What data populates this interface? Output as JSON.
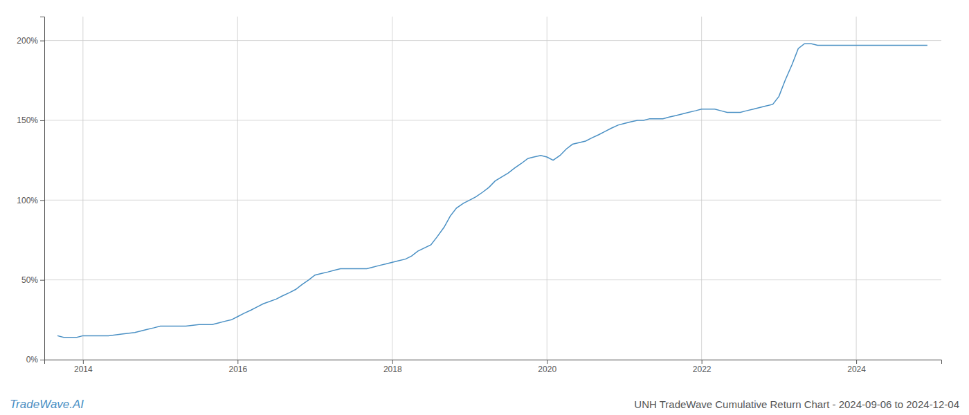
{
  "chart_data": {
    "type": "line",
    "title": "UNH TradeWave Cumulative Return Chart - 2024-09-06 to 2024-12-04",
    "annotations": [
      "TradeWave.AI"
    ],
    "color": "#4a90c4",
    "grid": true,
    "x": [
      2013.67,
      2013.75,
      2013.92,
      2014.0,
      2014.08,
      2014.17,
      2014.25,
      2014.33,
      2014.5,
      2014.67,
      2014.75,
      2014.83,
      2014.92,
      2015.0,
      2015.08,
      2015.17,
      2015.25,
      2015.33,
      2015.5,
      2015.58,
      2015.67,
      2015.75,
      2015.83,
      2015.92,
      2016.0,
      2016.08,
      2016.17,
      2016.25,
      2016.33,
      2016.5,
      2016.58,
      2016.67,
      2016.75,
      2016.83,
      2016.92,
      2017.0,
      2017.08,
      2017.17,
      2017.25,
      2017.33,
      2017.5,
      2017.58,
      2017.67,
      2017.75,
      2017.83,
      2017.92,
      2018.0,
      2018.08,
      2018.17,
      2018.25,
      2018.33,
      2018.5,
      2018.58,
      2018.67,
      2018.75,
      2018.83,
      2018.92,
      2019.0,
      2019.08,
      2019.17,
      2019.25,
      2019.33,
      2019.5,
      2019.58,
      2019.67,
      2019.75,
      2019.83,
      2019.92,
      2020.0,
      2020.08,
      2020.17,
      2020.25,
      2020.33,
      2020.5,
      2020.58,
      2020.67,
      2020.75,
      2020.83,
      2020.92,
      2021.0,
      2021.08,
      2021.17,
      2021.25,
      2021.33,
      2021.5,
      2021.58,
      2021.67,
      2021.75,
      2021.83,
      2021.92,
      2022.0,
      2022.08,
      2022.17,
      2022.25,
      2022.33,
      2022.5,
      2022.58,
      2022.67,
      2022.75,
      2022.83,
      2022.92,
      2023.0,
      2023.08,
      2023.17,
      2023.25,
      2023.33,
      2023.42,
      2023.5,
      2023.58,
      2023.67,
      2023.75,
      2023.83,
      2023.92,
      2024.0,
      2024.08,
      2024.17,
      2024.25,
      2024.33,
      2024.5,
      2024.58,
      2024.67,
      2024.75,
      2024.83,
      2024.92
    ],
    "values": [
      15,
      14,
      14,
      15,
      15,
      15,
      15,
      15,
      16,
      17,
      18,
      19,
      20,
      21,
      21,
      21,
      21,
      21,
      22,
      22,
      22,
      23,
      24,
      25,
      27,
      29,
      31,
      33,
      35,
      38,
      40,
      42,
      44,
      47,
      50,
      53,
      54,
      55,
      56,
      57,
      57,
      57,
      57,
      58,
      59,
      60,
      61,
      62,
      63,
      65,
      68,
      72,
      77,
      83,
      90,
      95,
      98,
      100,
      102,
      105,
      108,
      112,
      117,
      120,
      123,
      126,
      127,
      128,
      127,
      125,
      128,
      132,
      135,
      137,
      139,
      141,
      143,
      145,
      147,
      148,
      149,
      150,
      150,
      151,
      151,
      152,
      153,
      154,
      155,
      156,
      157,
      157,
      157,
      156,
      155,
      155,
      156,
      157,
      158,
      159,
      160,
      165,
      175,
      185,
      195,
      198,
      198,
      197,
      197,
      197,
      197,
      197,
      197,
      197,
      197,
      197,
      197,
      197,
      197,
      197,
      197,
      197,
      197,
      197
    ],
    "xlim": [
      2013.5,
      2025.1
    ],
    "xticks": [
      2014,
      2016,
      2018,
      2020,
      2022,
      2024
    ],
    "ylim": [
      0,
      215
    ],
    "yticks": [
      {
        "value": 0,
        "label": "0%"
      },
      {
        "value": 50,
        "label": "50%"
      },
      {
        "value": 100,
        "label": "100%"
      },
      {
        "value": 150,
        "label": "150%"
      },
      {
        "value": 200,
        "label": "200%"
      }
    ]
  }
}
